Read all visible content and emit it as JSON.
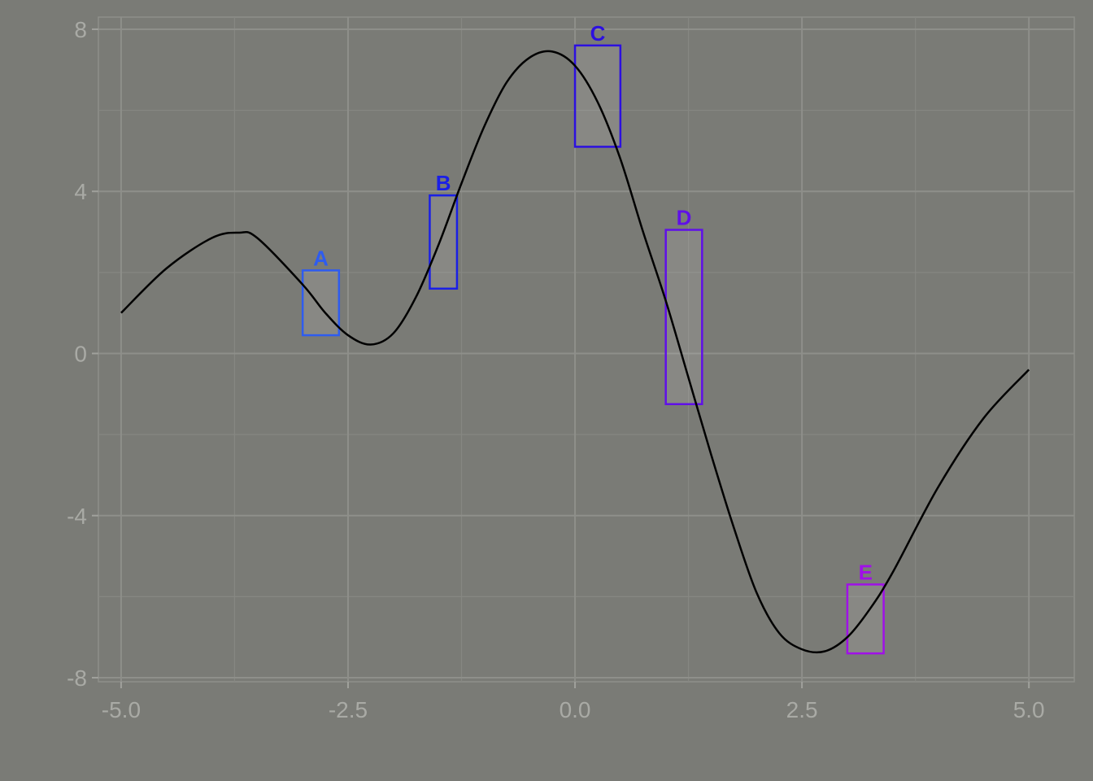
{
  "chart_data": {
    "type": "line",
    "title": "",
    "xlabel": "",
    "ylabel": "",
    "xlim": [
      -5.25,
      5.5
    ],
    "ylim": [
      -8.1,
      8.3
    ],
    "x_ticks": [
      -5.0,
      -2.5,
      0.0,
      2.5,
      5.0
    ],
    "x_tick_labels": [
      "-5.0",
      "-2.5",
      "0.0",
      "2.5",
      "5.0"
    ],
    "y_ticks": [
      -8,
      -4,
      0,
      4,
      8
    ],
    "y_tick_labels": [
      "-8",
      "-4",
      "0",
      "4",
      "8"
    ],
    "grid": true,
    "legend": "none",
    "series": [
      {
        "color": "#000000",
        "x": [
          -5.0,
          -4.5,
          -4.0,
          -3.7,
          -3.5,
          -3.0,
          -2.75,
          -2.5,
          -2.25,
          -2.0,
          -1.75,
          -1.5,
          -1.25,
          -1.0,
          -0.75,
          -0.5,
          -0.25,
          0.0,
          0.25,
          0.5,
          0.75,
          1.0,
          1.25,
          1.5,
          1.75,
          2.0,
          2.25,
          2.5,
          2.75,
          3.0,
          3.25,
          3.5,
          4.0,
          4.5,
          5.0
        ],
        "y": [
          1.0,
          2.1,
          2.85,
          2.98,
          2.85,
          1.7,
          1.0,
          0.45,
          0.22,
          0.5,
          1.4,
          2.7,
          4.2,
          5.6,
          6.7,
          7.3,
          7.45,
          7.1,
          6.2,
          4.8,
          3.0,
          1.3,
          -0.6,
          -2.5,
          -4.3,
          -5.9,
          -6.9,
          -7.3,
          -7.35,
          -7.0,
          -6.3,
          -5.4,
          -3.3,
          -1.6,
          -0.4
        ]
      }
    ],
    "annotations": [
      {
        "label": "A",
        "color": "#2e5cf0",
        "x_range": [
          -3.0,
          -2.6
        ],
        "y_range": [
          0.45,
          2.05
        ]
      },
      {
        "label": "B",
        "color": "#1a1fe6",
        "x_range": [
          -1.6,
          -1.3
        ],
        "y_range": [
          1.6,
          3.9
        ]
      },
      {
        "label": "C",
        "color": "#2c10e0",
        "x_range": [
          0.0,
          0.5
        ],
        "y_range": [
          5.1,
          7.6
        ]
      },
      {
        "label": "D",
        "color": "#6010e8",
        "x_range": [
          1.0,
          1.4
        ],
        "y_range": [
          -1.25,
          3.05
        ]
      },
      {
        "label": "E",
        "color": "#a010e8",
        "x_range": [
          3.0,
          3.4
        ],
        "y_range": [
          -7.4,
          -5.7
        ]
      }
    ]
  }
}
